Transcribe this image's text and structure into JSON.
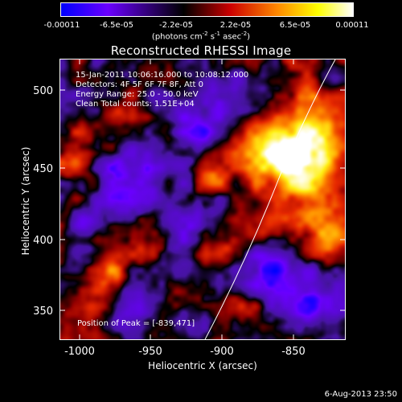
{
  "colorbar": {
    "tick_labels": [
      "-0.00011",
      "-6.5e-05",
      "-2.2e-05",
      "2.2e-05",
      "6.5e-05",
      "0.00011"
    ],
    "units_prefix": "(photons cm",
    "units_exp1": "-2",
    "units_mid1": " s",
    "units_exp2": "-1",
    "units_mid2": " asec",
    "units_exp3": "-2",
    "units_suffix": ")",
    "colors": [
      "#0000ff",
      "#6a00ff",
      "#000000",
      "#cc0000",
      "#ff8800",
      "#ffff00",
      "#ffffff"
    ]
  },
  "plot": {
    "title": "Reconstructed RHESSI Image",
    "xlabel": "Heliocentric X (arcsec)",
    "ylabel": "Heliocentric Y (arcsec)",
    "x_ticks": [
      "-1000",
      "-950",
      "-900",
      "-850"
    ],
    "y_ticks": [
      "350",
      "400",
      "450",
      "500"
    ],
    "x_range": [
      -1015,
      -815
    ],
    "y_range": [
      325,
      525
    ]
  },
  "annotations": {
    "line1": "15-Jan-2011 10:06:16.000 to 10:08:12.000",
    "line2": "Detectors: 4F 5F 6F 7F 8F, Att 0",
    "line3": "Energy Range: 25.0 - 50.0 keV",
    "line4": "Clean    Total counts: 1.51E+04",
    "peak": "Position of Peak = [-839,471]"
  },
  "footer": {
    "date": "6-Aug-2013 23:50"
  }
}
